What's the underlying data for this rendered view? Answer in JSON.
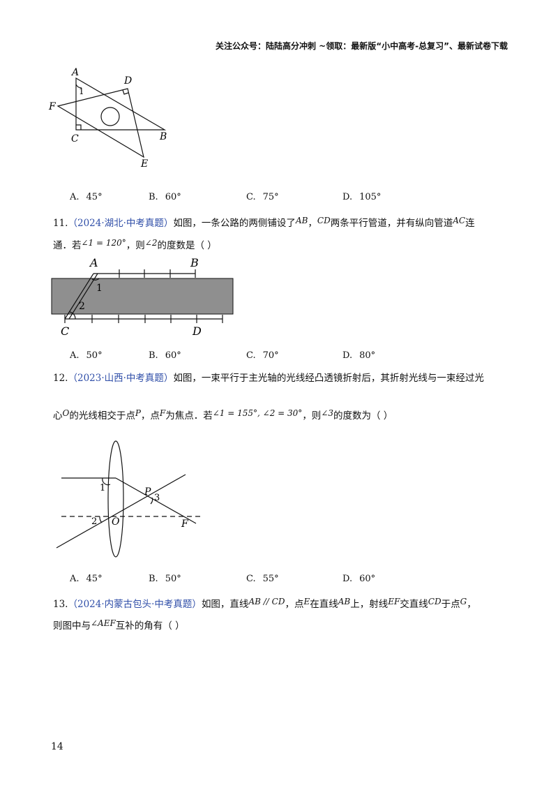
{
  "header": {
    "text": "关注公众号：陆陆高分冲刺 ~领取：最新版“小中高考-总复习”、最新试卷下载"
  },
  "q10": {
    "figure": {
      "labels": {
        "A": "A",
        "D": "D",
        "F": "F",
        "C": "C",
        "B": "B",
        "E": "E",
        "one": "1"
      }
    },
    "options": [
      {
        "label": "A.",
        "value": "45°"
      },
      {
        "label": "B.",
        "value": "60°"
      },
      {
        "label": "C.",
        "value": "75°"
      },
      {
        "label": "D.",
        "value": "105°"
      }
    ]
  },
  "q11": {
    "number": "11.",
    "source": "（2024·湖北·中考真题）",
    "text1": "如图，一条公路的两侧铺设了",
    "ab": "AB",
    "comma": "，",
    "cd": "CD",
    "text2": "两条平行管道，并有纵向管道",
    "ac": "AC",
    "text3": "连",
    "line2a": "通．若",
    "cond": "∠1 = 120°",
    "line2b": "，则",
    "ask": "∠2",
    "line2c": "的度数是（    ）",
    "figure": {
      "labels": {
        "A": "A",
        "B": "B",
        "C": "C",
        "D": "D",
        "one": "1",
        "two": "2"
      }
    },
    "options": [
      {
        "label": "A.",
        "value": "50°"
      },
      {
        "label": "B.",
        "value": "60°"
      },
      {
        "label": "C.",
        "value": "70°"
      },
      {
        "label": "D.",
        "value": "80°"
      }
    ]
  },
  "q12": {
    "number": "12.",
    "source": "（2023·山西·中考真题）",
    "text1": "如图，一束平行于主光轴的光线经凸透镜折射后，其折射光线与一束经过光",
    "line2a": "心",
    "o": "O",
    "line2b": "的光线相交于点",
    "p": "P",
    "line2c": "，点",
    "f": "F",
    "line2d": "为焦点．若",
    "cond": "∠1 = 155°, ∠2 = 30°",
    "line2e": "，则",
    "ask": "∠3",
    "line2f": "的度数为（    ）",
    "figure": {
      "labels": {
        "one": "1",
        "two": "2",
        "three": "3",
        "P": "P",
        "O": "O",
        "F": "F"
      }
    },
    "options": [
      {
        "label": "A.",
        "value": "45°"
      },
      {
        "label": "B.",
        "value": "50°"
      },
      {
        "label": "C.",
        "value": "55°"
      },
      {
        "label": "D.",
        "value": "60°"
      }
    ]
  },
  "q13": {
    "number": "13.",
    "source": "（2024·内蒙古包头·中考真题）",
    "text1": "如图，直线",
    "parallel": "AB // CD",
    "text2": "，点",
    "e": "E",
    "text3": "在直线",
    "ab": "AB",
    "text4": "上，射线",
    "ef": "EF",
    "text5": "交直线",
    "cd": "CD",
    "text6": "于点",
    "g": "G",
    "text7": "，",
    "line2a": "则图中与",
    "angle": "∠AEF",
    "line2b": "互补的角有（    ）"
  },
  "page_number": "14"
}
